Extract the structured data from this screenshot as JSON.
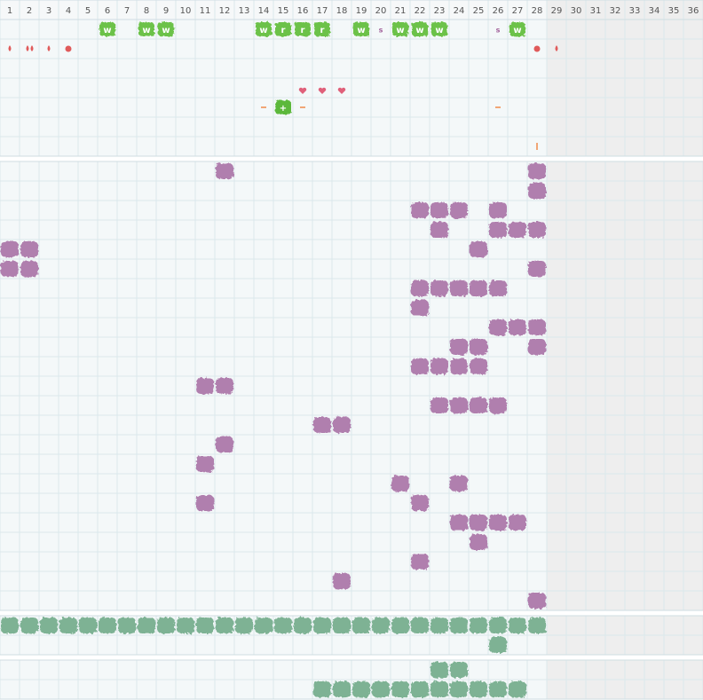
{
  "columns": [
    "1",
    "2",
    "3",
    "4",
    "5",
    "6",
    "7",
    "8",
    "9",
    "10",
    "11",
    "12",
    "13",
    "14",
    "15",
    "16",
    "17",
    "18",
    "19",
    "20",
    "21",
    "22",
    "23",
    "24",
    "25",
    "26",
    "27",
    "28",
    "29",
    "30",
    "31",
    "32",
    "33",
    "34",
    "35",
    "36"
  ],
  "icons": [
    "w",
    "w",
    "w",
    "w",
    "r",
    "r",
    "r",
    "w",
    "s",
    "w",
    "w",
    "w",
    "s",
    "w",
    "+"
  ]
}
